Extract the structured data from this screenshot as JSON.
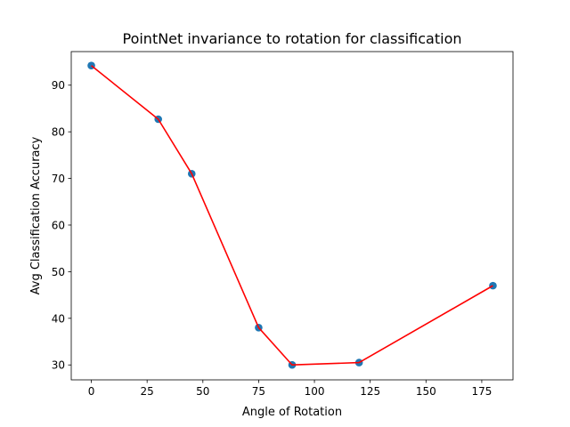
{
  "chart_data": {
    "type": "line",
    "title": "PointNet invariance to rotation for classification",
    "xlabel": "Angle of Rotation",
    "ylabel": "Avg Classification Accuracy",
    "xlim": [
      -9,
      189
    ],
    "ylim": [
      26.8,
      97.2
    ],
    "x_ticks": [
      0,
      25,
      50,
      75,
      100,
      125,
      150,
      175
    ],
    "y_ticks": [
      30,
      40,
      50,
      60,
      70,
      80,
      90
    ],
    "grid": false,
    "series": [
      {
        "x": [
          0,
          30,
          45,
          75,
          90,
          120,
          180
        ],
        "y": [
          94.2,
          82.7,
          71.0,
          38.0,
          30.0,
          30.5,
          47.0
        ],
        "line_color": "#ff0000",
        "marker_color": "#1f77b4"
      }
    ]
  }
}
